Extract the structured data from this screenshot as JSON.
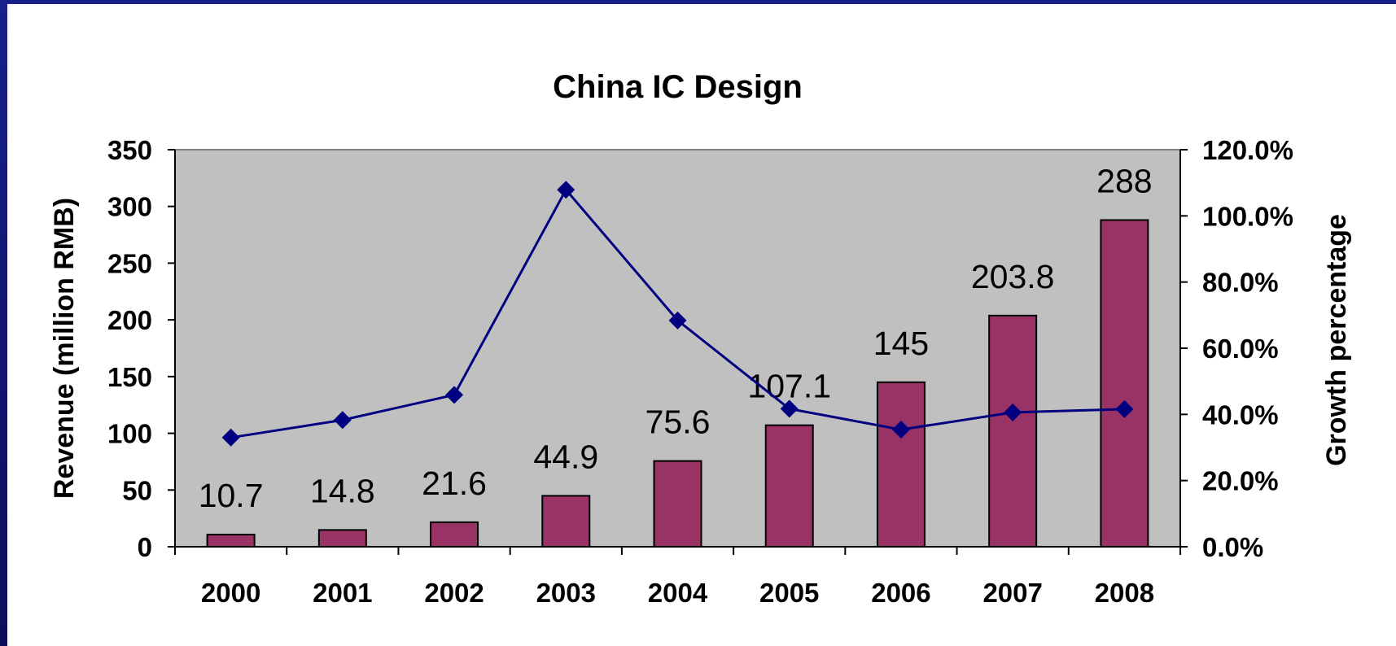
{
  "chart_data": {
    "type": "bar",
    "title": "China IC Design",
    "categories": [
      "2000",
      "2001",
      "2002",
      "2003",
      "2004",
      "2005",
      "2006",
      "2007",
      "2008"
    ],
    "series": [
      {
        "type": "bar",
        "axis": "left",
        "values": [
          10.7,
          14.8,
          21.6,
          44.9,
          75.6,
          107.1,
          145,
          203.8,
          288
        ],
        "data_labels": [
          "10.7",
          "14.8",
          "21.6",
          "44.9",
          "75.6",
          "107.1",
          "145",
          "203.8",
          "288"
        ]
      },
      {
        "type": "line",
        "axis": "right",
        "values": [
          33.0,
          38.3,
          45.9,
          107.9,
          68.4,
          41.7,
          35.4,
          40.6,
          41.6
        ]
      }
    ],
    "ylabel": "Revenue (million RMB)",
    "y2label": "Growth percentage",
    "ylim": [
      0,
      350
    ],
    "y2lim": [
      0,
      1.2
    ],
    "yticks": [
      "0",
      "50",
      "100",
      "150",
      "200",
      "250",
      "300",
      "350"
    ],
    "y2ticks": [
      "0.0%",
      "20.0%",
      "40.0%",
      "60.0%",
      "80.0%",
      "100.0%",
      "120.0%"
    ],
    "colors": {
      "bar": "#993366",
      "line": "#000080",
      "plot_bg": "#c0c0c0",
      "frame": "#0b0e5a"
    },
    "grid": false,
    "legend": "none"
  }
}
